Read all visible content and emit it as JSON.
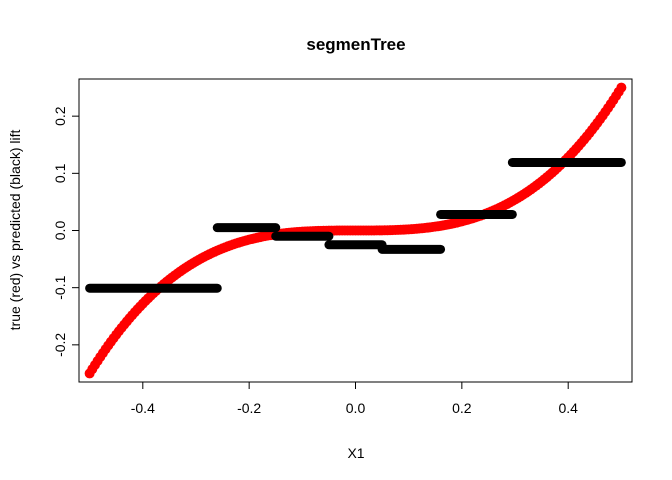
{
  "chart_data": {
    "type": "scatter",
    "title": "segmenTree",
    "xlabel": "X1",
    "ylabel": "true (red) vs predicted (black) lift",
    "xlim": [
      -0.52,
      0.52
    ],
    "ylim": [
      -0.265,
      0.265
    ],
    "xticks": [
      -0.4,
      -0.2,
      0.0,
      0.2,
      0.4
    ],
    "xtick_labels": [
      "-0.4",
      "-0.2",
      "0.0",
      "0.2",
      "0.4"
    ],
    "yticks": [
      -0.2,
      -0.1,
      0.0,
      0.1,
      0.2
    ],
    "ytick_labels": [
      "-0.2",
      "-0.1",
      "0.0",
      "0.1",
      "0.2"
    ],
    "grid": false,
    "series": [
      {
        "description": "true lift",
        "color": "#ff0000",
        "function": "2*x^3",
        "x_range": [
          -0.5,
          0.5
        ]
      },
      {
        "description": "predicted lift",
        "color": "#000000",
        "segments": [
          {
            "x_start": -0.5,
            "x_end": -0.26,
            "y": -0.101
          },
          {
            "x_start": -0.26,
            "x_end": -0.15,
            "y": 0.005
          },
          {
            "x_start": -0.15,
            "x_end": -0.05,
            "y": -0.01
          },
          {
            "x_start": -0.05,
            "x_end": 0.05,
            "y": -0.025
          },
          {
            "x_start": 0.05,
            "x_end": 0.16,
            "y": -0.033
          },
          {
            "x_start": 0.16,
            "x_end": 0.295,
            "y": 0.028
          },
          {
            "x_start": 0.295,
            "x_end": 0.5,
            "y": 0.119
          }
        ]
      }
    ]
  }
}
